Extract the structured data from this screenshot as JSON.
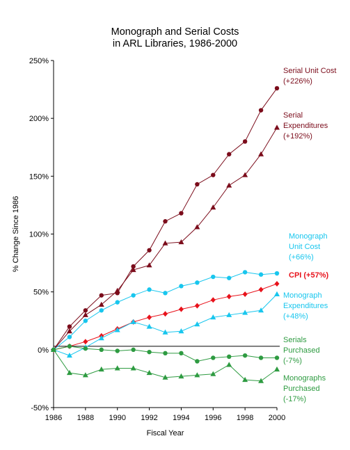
{
  "chart_data": {
    "type": "line",
    "title_lines": [
      "Monograph and Serial Costs",
      "in ARL Libraries, 1986-2000"
    ],
    "xlabel": "Fiscal Year",
    "ylabel": "% Change Since 1986",
    "xlim": [
      1986,
      2000
    ],
    "ylim": [
      -50,
      250
    ],
    "x_ticks": [
      "1986",
      "1988",
      "1990",
      "1992",
      "1994",
      "1996",
      "1998",
      "2000"
    ],
    "y_ticks": [
      "-50%",
      "0%",
      "50%",
      "100%",
      "150%",
      "200%",
      "250%"
    ],
    "x": [
      1986,
      1987,
      1988,
      1989,
      1990,
      1991,
      1992,
      1993,
      1994,
      1995,
      1996,
      1997,
      1998,
      1999,
      2000
    ],
    "reference_line_y": 3,
    "series": [
      {
        "name_lines": [
          "Serial Unit Cost",
          "(+226%)"
        ],
        "color": "#7b0c1b",
        "marker": "circle",
        "values": [
          0,
          20,
          34,
          47,
          49,
          72,
          86,
          111,
          118,
          143,
          151,
          169,
          180,
          207,
          226
        ]
      },
      {
        "name_lines": [
          "Serial",
          "Expenditures",
          "(+192%)"
        ],
        "color": "#7b0c1b",
        "marker": "triangle",
        "values": [
          0,
          16,
          30,
          39,
          51,
          69,
          73,
          92,
          93,
          106,
          123,
          142,
          151,
          169,
          192
        ]
      },
      {
        "name_lines": [
          "Monograph",
          "Unit Cost",
          "(+66%)"
        ],
        "color": "#18c6ee",
        "marker": "circle",
        "values": [
          0,
          11,
          25,
          34,
          41,
          47,
          52,
          49,
          55,
          58,
          63,
          62,
          67,
          65,
          66
        ]
      },
      {
        "name_lines": [
          "CPI (+57%)"
        ],
        "color": "#e8121b",
        "label_color": "#e8121b",
        "label_bold": true,
        "marker": "diamond",
        "values": [
          0,
          3,
          7,
          12,
          18,
          24,
          28,
          31,
          35,
          38,
          43,
          46,
          48,
          52,
          57
        ]
      },
      {
        "name_lines": [
          "Monograph",
          "Expenditures",
          "(+48%)"
        ],
        "color": "#18c6ee",
        "marker": "triangle",
        "values": [
          0,
          -5,
          2,
          10,
          17,
          24,
          20,
          15,
          16,
          22,
          28,
          30,
          32,
          34,
          48
        ]
      },
      {
        "name_lines": [
          "Serials",
          "Purchased",
          "(-7%)"
        ],
        "color": "#2e9b41",
        "marker": "circle",
        "values": [
          0,
          3,
          1,
          0,
          -1,
          0,
          -2,
          -3,
          -3,
          -10,
          -7,
          -6,
          -5,
          -7,
          -7
        ]
      },
      {
        "name_lines": [
          "Monographs",
          "Purchased",
          "(-17%)"
        ],
        "color": "#2e9b41",
        "marker": "triangle",
        "values": [
          0,
          -20,
          -22,
          -17,
          -16,
          -16,
          -20,
          -24,
          -23,
          -22,
          -21,
          -13,
          -26,
          -27,
          -17
        ]
      }
    ]
  }
}
